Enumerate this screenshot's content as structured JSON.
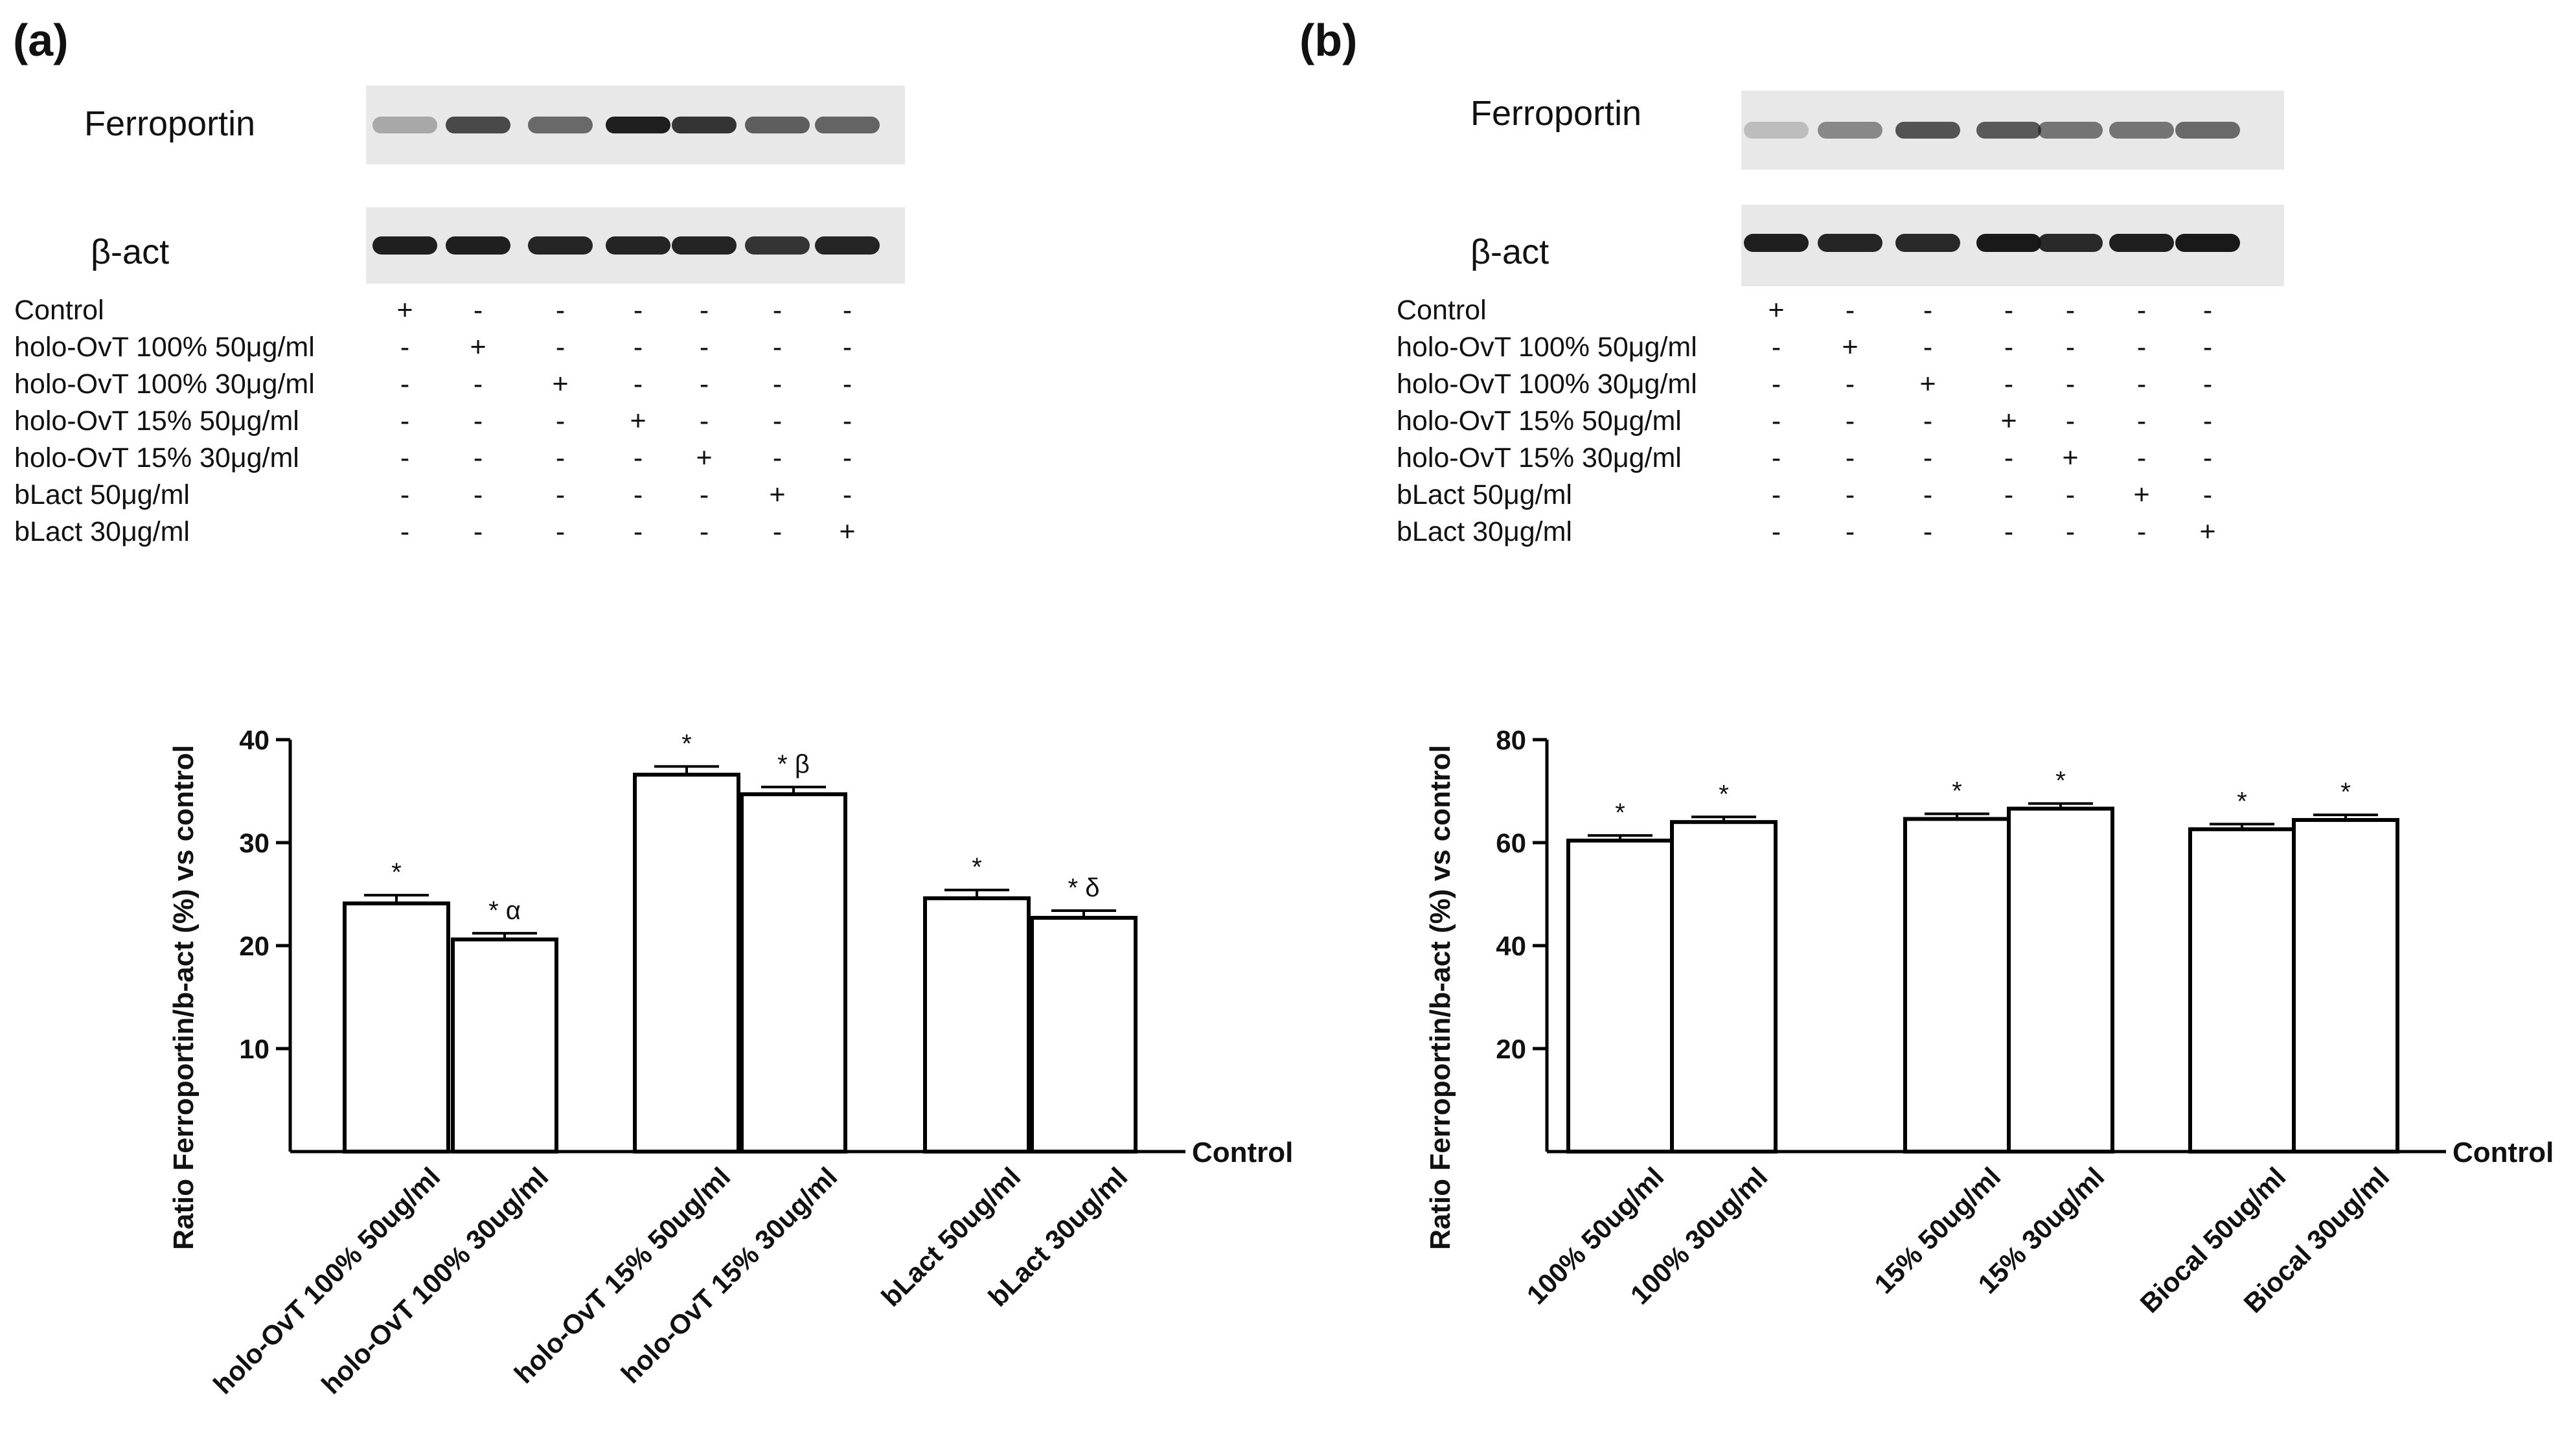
{
  "panels": [
    {
      "label": "(a)",
      "blots": [
        {
          "label": "Ferroportin",
          "intensity": [
            0.3,
            0.75,
            0.6,
            0.95,
            0.85,
            0.65,
            0.62
          ]
        },
        {
          "label": "β-act",
          "intensity": [
            0.95,
            0.95,
            0.92,
            0.93,
            0.93,
            0.85,
            0.92
          ]
        }
      ],
      "conditions": [
        {
          "label": "Control",
          "marks": [
            "+",
            "-",
            "-",
            "-",
            "-",
            "-",
            "-"
          ]
        },
        {
          "label": "holo-OvT 100% 50μg/ml",
          "marks": [
            "-",
            "+",
            "-",
            "-",
            "-",
            "-",
            "-"
          ]
        },
        {
          "label": "holo-OvT 100% 30μg/ml",
          "marks": [
            "-",
            "-",
            "+",
            "-",
            "-",
            "-",
            "-"
          ]
        },
        {
          "label": "holo-OvT 15% 50μg/ml",
          "marks": [
            "-",
            "-",
            "-",
            "+",
            "-",
            "-",
            "-"
          ]
        },
        {
          "label": "holo-OvT 15% 30μg/ml",
          "marks": [
            "-",
            "-",
            "-",
            "-",
            "+",
            "-",
            "-"
          ]
        },
        {
          "label": "bLact 50μg/ml",
          "marks": [
            "-",
            "-",
            "-",
            "-",
            "-",
            "+",
            "-"
          ]
        },
        {
          "label": "bLact 30μg/ml",
          "marks": [
            "-",
            "-",
            "-",
            "-",
            "-",
            "-",
            "+"
          ]
        }
      ]
    },
    {
      "label": "(b)",
      "blots": [
        {
          "label": "Ferroportin",
          "intensity": [
            0.2,
            0.45,
            0.7,
            0.68,
            0.55,
            0.55,
            0.6
          ]
        },
        {
          "label": "β-act",
          "intensity": [
            0.95,
            0.92,
            0.9,
            0.98,
            0.9,
            0.95,
            0.98
          ]
        }
      ],
      "conditions": [
        {
          "label": "Control",
          "marks": [
            "+",
            "-",
            "-",
            "-",
            "-",
            "-",
            "-"
          ]
        },
        {
          "label": "holo-OvT 100% 50μg/ml",
          "marks": [
            "-",
            "+",
            "-",
            "-",
            "-",
            "-",
            "-"
          ]
        },
        {
          "label": "holo-OvT 100% 30μg/ml",
          "marks": [
            "-",
            "-",
            "+",
            "-",
            "-",
            "-",
            "-"
          ]
        },
        {
          "label": "holo-OvT 15% 50μg/ml",
          "marks": [
            "-",
            "-",
            "-",
            "+",
            "-",
            "-",
            "-"
          ]
        },
        {
          "label": "holo-OvT 15% 30μg/ml",
          "marks": [
            "-",
            "-",
            "-",
            "-",
            "+",
            "-",
            "-"
          ]
        },
        {
          "label": "bLact 50μg/ml",
          "marks": [
            "-",
            "-",
            "-",
            "-",
            "-",
            "+",
            "-"
          ]
        },
        {
          "label": "bLact 30μg/ml",
          "marks": [
            "-",
            "-",
            "-",
            "-",
            "-",
            "-",
            "+"
          ]
        }
      ]
    }
  ],
  "chart_data": [
    {
      "type": "bar",
      "ylabel": "Ratio Ferroportin/b-act (%) vs control",
      "baseline_label": "Control",
      "ylim": [
        0,
        40
      ],
      "yticks": [
        10,
        20,
        30,
        40
      ],
      "groups": [
        {
          "categories": [
            "holo-OvT 100% 50ug/ml",
            "holo-OvT 100% 30ug/ml"
          ],
          "values": [
            24.1,
            20.6
          ],
          "errors": [
            0.8,
            0.6
          ],
          "annotations": [
            "*",
            "* α"
          ]
        },
        {
          "categories": [
            "holo-OvT 15% 50ug/ml",
            "holo-OvT 15% 30ug/ml"
          ],
          "values": [
            36.6,
            34.7
          ],
          "errors": [
            0.8,
            0.7
          ],
          "annotations": [
            "*",
            "* β"
          ]
        },
        {
          "categories": [
            "bLact 50ug/ml",
            "bLact 30ug/ml"
          ],
          "values": [
            24.6,
            22.7
          ],
          "errors": [
            0.8,
            0.7
          ],
          "annotations": [
            "*",
            "* δ"
          ]
        }
      ]
    },
    {
      "type": "bar",
      "ylabel": "Ratio Ferroportin/b-act (%) vs control",
      "baseline_label": "Control",
      "ylim": [
        0,
        80
      ],
      "yticks": [
        20,
        40,
        60,
        80
      ],
      "groups": [
        {
          "categories": [
            "100% 50ug/ml",
            "100% 30ug/ml"
          ],
          "values": [
            60.4,
            64.0
          ],
          "errors": [
            1.0,
            1.0
          ],
          "annotations": [
            "*",
            "*"
          ]
        },
        {
          "categories": [
            "15% 50ug/ml",
            "15% 30ug/ml"
          ],
          "values": [
            64.6,
            66.6
          ],
          "errors": [
            1.0,
            1.0
          ],
          "annotations": [
            "*",
            "*"
          ]
        },
        {
          "categories": [
            "Biocal 50ug/ml",
            "Biocal 30ug/ml"
          ],
          "values": [
            62.6,
            64.4
          ],
          "errors": [
            1.0,
            1.0
          ],
          "annotations": [
            "*",
            "*"
          ]
        }
      ]
    }
  ]
}
